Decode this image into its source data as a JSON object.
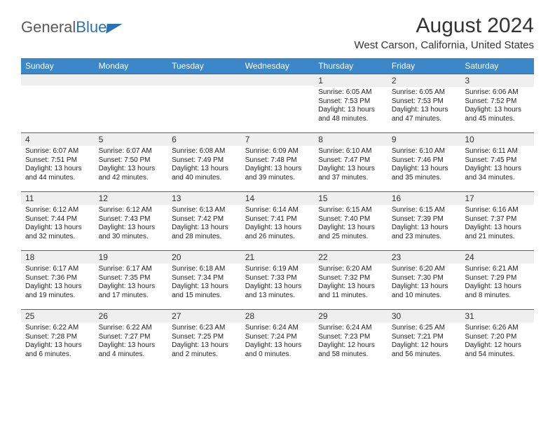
{
  "logo": {
    "main": "General",
    "accent": "Blue"
  },
  "title": "August 2024",
  "location": "West Carson, California, United States",
  "header_bg": "#3b87c8",
  "day_headers": [
    "Sunday",
    "Monday",
    "Tuesday",
    "Wednesday",
    "Thursday",
    "Friday",
    "Saturday"
  ],
  "weeks": [
    [
      {
        "n": "",
        "sr": "",
        "ss": "",
        "dl": ""
      },
      {
        "n": "",
        "sr": "",
        "ss": "",
        "dl": ""
      },
      {
        "n": "",
        "sr": "",
        "ss": "",
        "dl": ""
      },
      {
        "n": "",
        "sr": "",
        "ss": "",
        "dl": ""
      },
      {
        "n": "1",
        "sr": "Sunrise: 6:05 AM",
        "ss": "Sunset: 7:53 PM",
        "dl": "Daylight: 13 hours and 48 minutes."
      },
      {
        "n": "2",
        "sr": "Sunrise: 6:05 AM",
        "ss": "Sunset: 7:53 PM",
        "dl": "Daylight: 13 hours and 47 minutes."
      },
      {
        "n": "3",
        "sr": "Sunrise: 6:06 AM",
        "ss": "Sunset: 7:52 PM",
        "dl": "Daylight: 13 hours and 45 minutes."
      }
    ],
    [
      {
        "n": "4",
        "sr": "Sunrise: 6:07 AM",
        "ss": "Sunset: 7:51 PM",
        "dl": "Daylight: 13 hours and 44 minutes."
      },
      {
        "n": "5",
        "sr": "Sunrise: 6:07 AM",
        "ss": "Sunset: 7:50 PM",
        "dl": "Daylight: 13 hours and 42 minutes."
      },
      {
        "n": "6",
        "sr": "Sunrise: 6:08 AM",
        "ss": "Sunset: 7:49 PM",
        "dl": "Daylight: 13 hours and 40 minutes."
      },
      {
        "n": "7",
        "sr": "Sunrise: 6:09 AM",
        "ss": "Sunset: 7:48 PM",
        "dl": "Daylight: 13 hours and 39 minutes."
      },
      {
        "n": "8",
        "sr": "Sunrise: 6:10 AM",
        "ss": "Sunset: 7:47 PM",
        "dl": "Daylight: 13 hours and 37 minutes."
      },
      {
        "n": "9",
        "sr": "Sunrise: 6:10 AM",
        "ss": "Sunset: 7:46 PM",
        "dl": "Daylight: 13 hours and 35 minutes."
      },
      {
        "n": "10",
        "sr": "Sunrise: 6:11 AM",
        "ss": "Sunset: 7:45 PM",
        "dl": "Daylight: 13 hours and 34 minutes."
      }
    ],
    [
      {
        "n": "11",
        "sr": "Sunrise: 6:12 AM",
        "ss": "Sunset: 7:44 PM",
        "dl": "Daylight: 13 hours and 32 minutes."
      },
      {
        "n": "12",
        "sr": "Sunrise: 6:12 AM",
        "ss": "Sunset: 7:43 PM",
        "dl": "Daylight: 13 hours and 30 minutes."
      },
      {
        "n": "13",
        "sr": "Sunrise: 6:13 AM",
        "ss": "Sunset: 7:42 PM",
        "dl": "Daylight: 13 hours and 28 minutes."
      },
      {
        "n": "14",
        "sr": "Sunrise: 6:14 AM",
        "ss": "Sunset: 7:41 PM",
        "dl": "Daylight: 13 hours and 26 minutes."
      },
      {
        "n": "15",
        "sr": "Sunrise: 6:15 AM",
        "ss": "Sunset: 7:40 PM",
        "dl": "Daylight: 13 hours and 25 minutes."
      },
      {
        "n": "16",
        "sr": "Sunrise: 6:15 AM",
        "ss": "Sunset: 7:39 PM",
        "dl": "Daylight: 13 hours and 23 minutes."
      },
      {
        "n": "17",
        "sr": "Sunrise: 6:16 AM",
        "ss": "Sunset: 7:37 PM",
        "dl": "Daylight: 13 hours and 21 minutes."
      }
    ],
    [
      {
        "n": "18",
        "sr": "Sunrise: 6:17 AM",
        "ss": "Sunset: 7:36 PM",
        "dl": "Daylight: 13 hours and 19 minutes."
      },
      {
        "n": "19",
        "sr": "Sunrise: 6:17 AM",
        "ss": "Sunset: 7:35 PM",
        "dl": "Daylight: 13 hours and 17 minutes."
      },
      {
        "n": "20",
        "sr": "Sunrise: 6:18 AM",
        "ss": "Sunset: 7:34 PM",
        "dl": "Daylight: 13 hours and 15 minutes."
      },
      {
        "n": "21",
        "sr": "Sunrise: 6:19 AM",
        "ss": "Sunset: 7:33 PM",
        "dl": "Daylight: 13 hours and 13 minutes."
      },
      {
        "n": "22",
        "sr": "Sunrise: 6:20 AM",
        "ss": "Sunset: 7:32 PM",
        "dl": "Daylight: 13 hours and 11 minutes."
      },
      {
        "n": "23",
        "sr": "Sunrise: 6:20 AM",
        "ss": "Sunset: 7:30 PM",
        "dl": "Daylight: 13 hours and 10 minutes."
      },
      {
        "n": "24",
        "sr": "Sunrise: 6:21 AM",
        "ss": "Sunset: 7:29 PM",
        "dl": "Daylight: 13 hours and 8 minutes."
      }
    ],
    [
      {
        "n": "25",
        "sr": "Sunrise: 6:22 AM",
        "ss": "Sunset: 7:28 PM",
        "dl": "Daylight: 13 hours and 6 minutes."
      },
      {
        "n": "26",
        "sr": "Sunrise: 6:22 AM",
        "ss": "Sunset: 7:27 PM",
        "dl": "Daylight: 13 hours and 4 minutes."
      },
      {
        "n": "27",
        "sr": "Sunrise: 6:23 AM",
        "ss": "Sunset: 7:25 PM",
        "dl": "Daylight: 13 hours and 2 minutes."
      },
      {
        "n": "28",
        "sr": "Sunrise: 6:24 AM",
        "ss": "Sunset: 7:24 PM",
        "dl": "Daylight: 13 hours and 0 minutes."
      },
      {
        "n": "29",
        "sr": "Sunrise: 6:24 AM",
        "ss": "Sunset: 7:23 PM",
        "dl": "Daylight: 12 hours and 58 minutes."
      },
      {
        "n": "30",
        "sr": "Sunrise: 6:25 AM",
        "ss": "Sunset: 7:21 PM",
        "dl": "Daylight: 12 hours and 56 minutes."
      },
      {
        "n": "31",
        "sr": "Sunrise: 6:26 AM",
        "ss": "Sunset: 7:20 PM",
        "dl": "Daylight: 12 hours and 54 minutes."
      }
    ]
  ]
}
